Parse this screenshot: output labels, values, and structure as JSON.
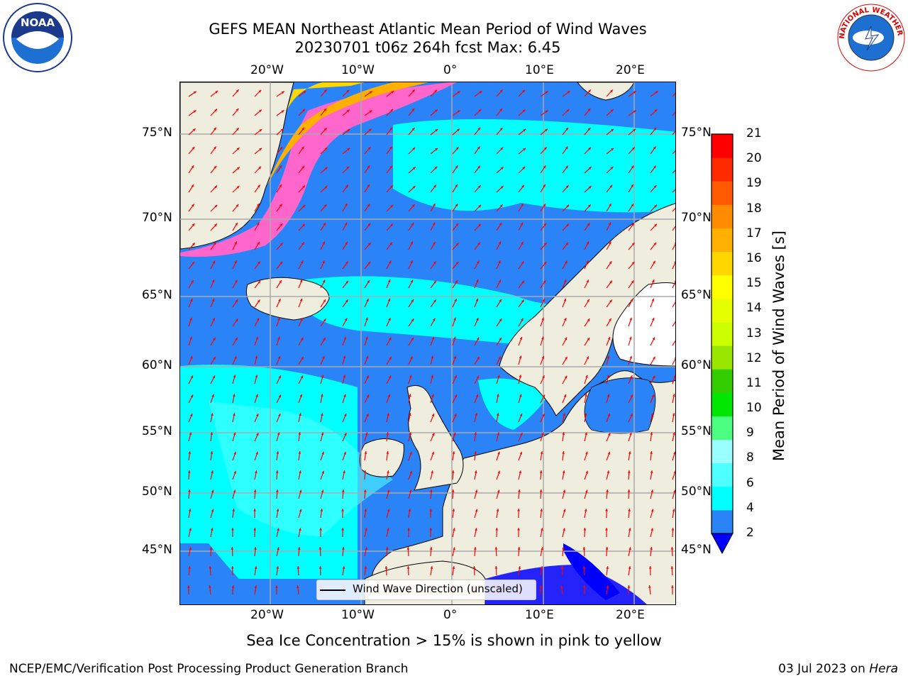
{
  "title_line1": "GEFS MEAN Northeast Atlantic Mean Period of Wind Waves",
  "title_line2": "20230701 t06z 264h fcst   Max: 6.45",
  "subtitle": "Sea Ice Concentration > 15% is shown in pink to yellow",
  "footer_left": "NCEP/EMC/Verification Post Processing Product Generation Branch",
  "footer_date": "03 Jul 2023 on ",
  "footer_host": "Hera",
  "legend_label": "Wind Wave Direction (unscaled)",
  "colorbar_label": "Mean Period of Wind Waves [s]",
  "colorbar_ticks": [
    "2",
    "4",
    "6",
    "8",
    "9",
    "10",
    "11",
    "12",
    "13",
    "14",
    "15",
    "16",
    "17",
    "18",
    "19",
    "20",
    "21"
  ],
  "colorbar_colors": [
    "#2b84f7",
    "#00ffff",
    "#4dffff",
    "#99ffff",
    "#4dff80",
    "#00e600",
    "#33cc00",
    "#99e600",
    "#ccff00",
    "#e6ff00",
    "#ffff00",
    "#ffd700",
    "#ffb000",
    "#ff8c00",
    "#ff5a00",
    "#ff2a00",
    "#ff0000"
  ],
  "lon_labels": [
    "20°W",
    "10°W",
    "0°",
    "10°E",
    "20°E"
  ],
  "lat_labels": [
    "75°N",
    "70°N",
    "65°N",
    "60°N",
    "55°N",
    "50°N",
    "45°N"
  ],
  "colors": {
    "land": "#efedde",
    "ocean_low": "#2b84f7",
    "ocean_mid": "#00ffff",
    "deep": "#0000ff",
    "arrow": "#ff0000",
    "grid": "#aaaaaa"
  },
  "logos": {
    "left": "NOAA",
    "right": "NATIONAL WEATHER SERVICE"
  }
}
